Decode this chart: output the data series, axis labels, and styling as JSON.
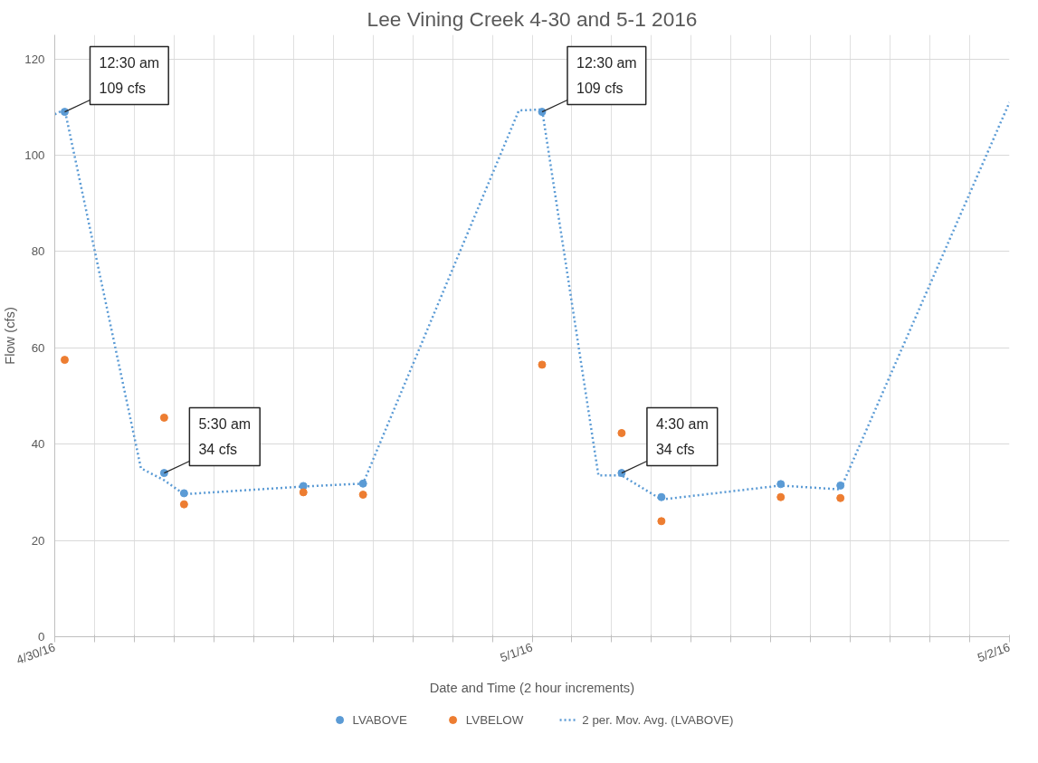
{
  "chart_data": {
    "type": "scatter",
    "title": "Lee Vining Creek 4-30 and 5-1 2016",
    "xlabel": "Date and Time (2 hour increments)",
    "ylabel": "Flow (cfs)",
    "x": [
      "2016-04-30T00:30",
      "2016-04-30T05:30",
      "2016-04-30T06:30",
      "2016-04-30T12:30",
      "2016-04-30T15:30",
      "2016-05-01T00:30",
      "2016-05-01T04:30",
      "2016-05-01T06:30",
      "2016-05-01T12:30",
      "2016-05-01T15:30"
    ],
    "series": [
      {
        "name": "LVABOVE",
        "color": "#5b9bd5",
        "values": [
          109,
          34,
          29.8,
          31.3,
          31.8,
          109,
          34,
          29,
          31.7,
          31.4
        ]
      },
      {
        "name": "LVBELOW",
        "color": "#ed7d31",
        "values": [
          57.5,
          45.5,
          27.5,
          30,
          29.5,
          56.5,
          42.3,
          24,
          29,
          28.8
        ]
      },
      {
        "name": "2 per. Mov. Avg. (LVABOVE)",
        "color": "#5b9bd5",
        "type": "line",
        "marker": "none",
        "line_style": "dotted",
        "x": [
          "2016-04-30T00:00",
          "2016-04-30T00:30",
          "2016-04-30T04:20",
          "2016-04-30T05:30",
          "2016-04-30T06:30",
          "2016-04-30T12:30",
          "2016-04-30T15:30",
          "2016-04-30T23:20",
          "2016-05-01T00:30",
          "2016-05-01T03:20",
          "2016-05-01T04:30",
          "2016-05-01T06:30",
          "2016-05-01T12:30",
          "2016-05-01T15:30",
          "2016-05-02T00:00"
        ],
        "values": [
          108.5,
          109.5,
          35,
          32.5,
          29.6,
          31.2,
          31.8,
          109.3,
          109.5,
          33.5,
          33.5,
          28.5,
          31.4,
          30.6,
          111
        ]
      }
    ],
    "xlim": [
      "2016-04-30T00:00",
      "2016-05-02T00:00"
    ],
    "ylim": [
      0,
      125
    ],
    "xticks": [
      {
        "value": "2016-04-30T00:00",
        "label": "4/30/16"
      },
      {
        "value": "2016-04-30T02:00",
        "label": null
      },
      {
        "value": "2016-04-30T04:00",
        "label": null
      },
      {
        "value": "2016-04-30T06:00",
        "label": null
      },
      {
        "value": "2016-04-30T08:00",
        "label": null
      },
      {
        "value": "2016-04-30T10:00",
        "label": null
      },
      {
        "value": "2016-04-30T12:00",
        "label": null
      },
      {
        "value": "2016-04-30T14:00",
        "label": null
      },
      {
        "value": "2016-04-30T16:00",
        "label": null
      },
      {
        "value": "2016-04-30T18:00",
        "label": null
      },
      {
        "value": "2016-04-30T20:00",
        "label": null
      },
      {
        "value": "2016-04-30T22:00",
        "label": null
      },
      {
        "value": "2016-05-01T00:00",
        "label": "5/1/16"
      },
      {
        "value": "2016-05-01T02:00",
        "label": null
      },
      {
        "value": "2016-05-01T04:00",
        "label": null
      },
      {
        "value": "2016-05-01T06:00",
        "label": null
      },
      {
        "value": "2016-05-01T08:00",
        "label": null
      },
      {
        "value": "2016-05-01T10:00",
        "label": null
      },
      {
        "value": "2016-05-01T12:00",
        "label": null
      },
      {
        "value": "2016-05-01T14:00",
        "label": null
      },
      {
        "value": "2016-05-01T16:00",
        "label": null
      },
      {
        "value": "2016-05-01T18:00",
        "label": null
      },
      {
        "value": "2016-05-01T20:00",
        "label": null
      },
      {
        "value": "2016-05-01T22:00",
        "label": null
      },
      {
        "value": "2016-05-02T00:00",
        "label": "5/2/16"
      }
    ],
    "yticks": [
      0,
      20,
      40,
      60,
      80,
      100,
      120
    ],
    "annotations": [
      {
        "text": "12:30 am\n109 cfs",
        "x": "2016-04-30T00:30",
        "y": 109
      },
      {
        "text": "5:30 am\n34 cfs",
        "x": "2016-04-30T05:30",
        "y": 34
      },
      {
        "text": "12:30 am\n109 cfs",
        "x": "2016-05-01T00:30",
        "y": 109
      },
      {
        "text": "4:30 am\n34 cfs",
        "x": "2016-05-01T04:30",
        "y": 34
      }
    ],
    "grid": true,
    "legend": "bottom",
    "marker": "circle"
  }
}
